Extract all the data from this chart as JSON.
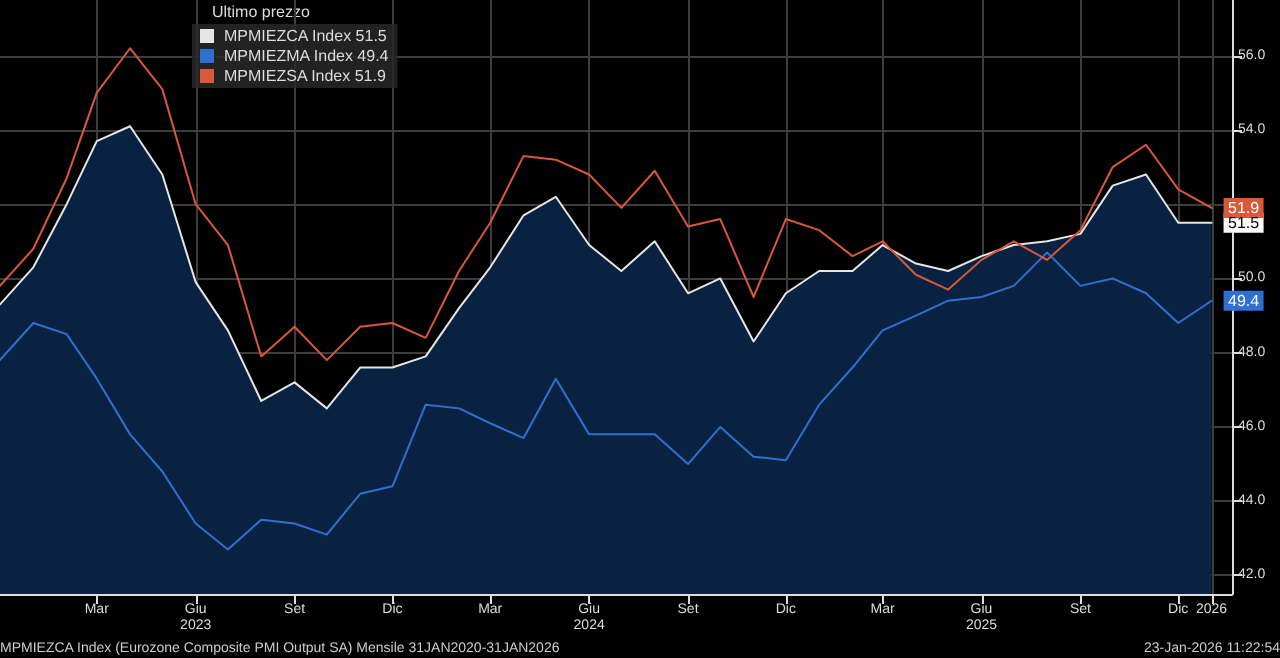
{
  "chart_data": {
    "type": "line",
    "legend_title": "Ultimo prezzo",
    "legend": "top left",
    "grid": true,
    "marker": "none",
    "x": [
      "2022-12",
      "2023-01",
      "2023-02",
      "2023-03",
      "2023-04",
      "2023-05",
      "2023-06",
      "2023-07",
      "2023-08",
      "2023-09",
      "2023-10",
      "2023-11",
      "2023-12",
      "2024-01",
      "2024-02",
      "2024-03",
      "2024-04",
      "2024-05",
      "2024-06",
      "2024-07",
      "2024-08",
      "2024-09",
      "2024-10",
      "2024-11",
      "2024-12",
      "2025-01",
      "2025-02",
      "2025-03",
      "2025-04",
      "2025-05",
      "2025-06",
      "2025-07",
      "2025-08",
      "2025-09",
      "2025-10",
      "2025-11",
      "2025-12",
      "2026-01"
    ],
    "series": [
      {
        "name": "MPMIEZCA Index 51.5",
        "type": "area",
        "color": "#e6e6e6",
        "values": [
          49.3,
          50.3,
          52.0,
          53.7,
          54.1,
          52.8,
          49.9,
          48.6,
          46.7,
          47.2,
          46.5,
          47.6,
          47.6,
          47.9,
          49.2,
          50.3,
          51.7,
          52.2,
          50.9,
          50.2,
          51.0,
          49.6,
          50.0,
          48.3,
          49.6,
          50.2,
          50.2,
          50.9,
          50.4,
          50.2,
          50.6,
          50.9,
          51.0,
          51.2,
          52.5,
          52.8,
          51.5,
          51.5
        ]
      },
      {
        "name": "MPMIEZMA Index 49.4",
        "color": "#2f6fd0",
        "values": [
          47.8,
          48.8,
          48.5,
          47.3,
          45.8,
          44.8,
          43.4,
          42.7,
          43.5,
          43.4,
          43.1,
          44.2,
          44.4,
          46.6,
          46.5,
          46.1,
          45.7,
          47.3,
          45.8,
          45.8,
          45.8,
          45.0,
          46.0,
          45.2,
          45.1,
          46.6,
          47.6,
          48.6,
          49.0,
          49.4,
          49.5,
          49.8,
          50.7,
          49.8,
          50.0,
          49.6,
          48.8,
          49.4
        ]
      },
      {
        "name": "MPMIEZSA Index 51.9",
        "color": "#d8583a",
        "values": [
          49.8,
          50.8,
          52.7,
          55.0,
          56.2,
          55.1,
          52.0,
          50.9,
          47.9,
          48.7,
          47.8,
          48.7,
          48.8,
          48.4,
          50.2,
          51.5,
          53.3,
          53.2,
          52.8,
          51.9,
          52.9,
          51.4,
          51.6,
          49.5,
          51.6,
          51.3,
          50.6,
          51.0,
          50.1,
          49.7,
          50.5,
          51.0,
          50.5,
          51.3,
          53.0,
          53.6,
          52.4,
          51.9
        ]
      }
    ],
    "xlim": [
      "2022-12-01",
      "2026-01-20"
    ],
    "xticks": [
      {
        "value": "2023-03",
        "label": "Mar"
      },
      {
        "value": "2023-06",
        "label": "Giu\n2023"
      },
      {
        "value": "2023-09",
        "label": "Set"
      },
      {
        "value": "2023-12",
        "label": "Dic"
      },
      {
        "value": "2024-03",
        "label": "Mar"
      },
      {
        "value": "2024-06",
        "label": "Giu\n2024"
      },
      {
        "value": "2024-09",
        "label": "Set"
      },
      {
        "value": "2024-12",
        "label": "Dic"
      },
      {
        "value": "2025-03",
        "label": "Mar"
      },
      {
        "value": "2025-06",
        "label": "Giu\n2025"
      },
      {
        "value": "2025-09",
        "label": "Set"
      },
      {
        "value": "2025-12",
        "label": "Dic"
      },
      {
        "value": "2026-01",
        "label": "2026"
      }
    ],
    "ylim": [
      41.5,
      57.5
    ],
    "yticks": [
      {
        "value": 42,
        "label": "42.0"
      },
      {
        "value": 44,
        "label": "44.0"
      },
      {
        "value": 46,
        "label": "46.0"
      },
      {
        "value": 48,
        "label": "48.0"
      },
      {
        "value": 50,
        "label": "50.0"
      },
      {
        "value": 52,
        "label": null
      },
      {
        "value": 54,
        "label": "54.0"
      },
      {
        "value": 56,
        "label": "56.0"
      }
    ],
    "annotations": [
      {
        "text": "51.9",
        "x": "2026-01",
        "y": 51.9
      },
      {
        "text": "51.5",
        "x": "2026-01",
        "y": 51.5
      },
      {
        "text": "49.4",
        "x": "2026-01",
        "y": 49.4
      },
      "MPMIEZCA Index (Eurozone Composite PMI Output SA) Mensile 31JAN2020-31JAN2026",
      "23-Jan-2026 11:22:54"
    ]
  }
}
